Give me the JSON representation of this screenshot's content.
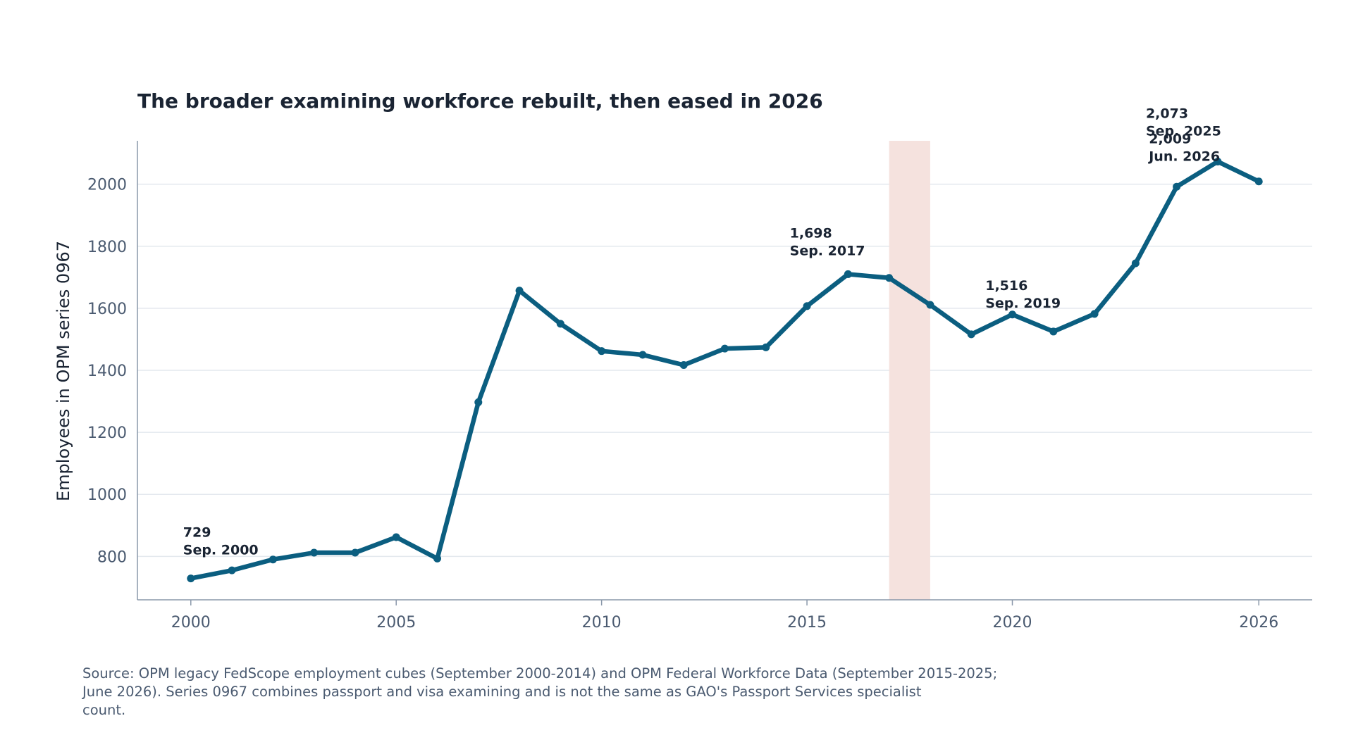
{
  "chart_data": {
    "type": "line",
    "title": "The broader examining workforce rebuilt, then eased in 2026",
    "ylabel": "Employees in OPM series 0967",
    "xlabel": "",
    "xlim": [
      1998.7,
      2027.3
    ],
    "ylim": [
      660,
      2140
    ],
    "xticks": [
      2000,
      2005,
      2010,
      2015,
      2020,
      2026
    ],
    "yticks": [
      800,
      1000,
      1200,
      1400,
      1600,
      1800,
      2000
    ],
    "grid": "horizontal",
    "colors": {
      "line": "#0b5e80",
      "highlight": "#f5e2de",
      "axis": "#8a98aa",
      "grid": "#e3e8ee"
    },
    "highlight_span": [
      2017,
      2018
    ],
    "series": [
      {
        "x": [
          2000,
          2001,
          2002,
          2003,
          2004,
          2005,
          2006,
          2007,
          2008,
          2009,
          2010,
          2011,
          2012,
          2013,
          2014,
          2015,
          2016,
          2017,
          2018,
          2019,
          2020,
          2021,
          2022,
          2023,
          2024,
          2025,
          2026
        ],
        "values": [
          729,
          755,
          790,
          812,
          812,
          862,
          793,
          1297,
          1657,
          1550,
          1462,
          1450,
          1417,
          1470,
          1474,
          1607,
          1710,
          1698,
          1611,
          1516,
          1580,
          1525,
          1582,
          1745,
          1992,
          2073,
          2009
        ]
      }
    ],
    "annotations": [
      {
        "value": "729",
        "label": "Sep. 2000",
        "x": 2000,
        "y": 729
      },
      {
        "value": "1,698",
        "label": "Sep. 2017",
        "x": 2017,
        "y": 1698
      },
      {
        "value": "1,516",
        "label": "Sep. 2019",
        "x": 2019,
        "y": 1516
      },
      {
        "value": "2,009",
        "label": "Jun. 2026",
        "x": 2026,
        "y": 2009
      },
      {
        "value": "2,073",
        "label": "Sep. 2025",
        "x": 2025,
        "y": 2073
      }
    ]
  },
  "source": {
    "lines": [
      "Source: OPM legacy FedScope employment cubes (September 2000-2014) and OPM Federal Workforce Data (September 2015-2025;",
      "June 2026). Series 0967 combines passport and visa examining and is not the same as GAO's Passport Services specialist",
      "count."
    ]
  }
}
